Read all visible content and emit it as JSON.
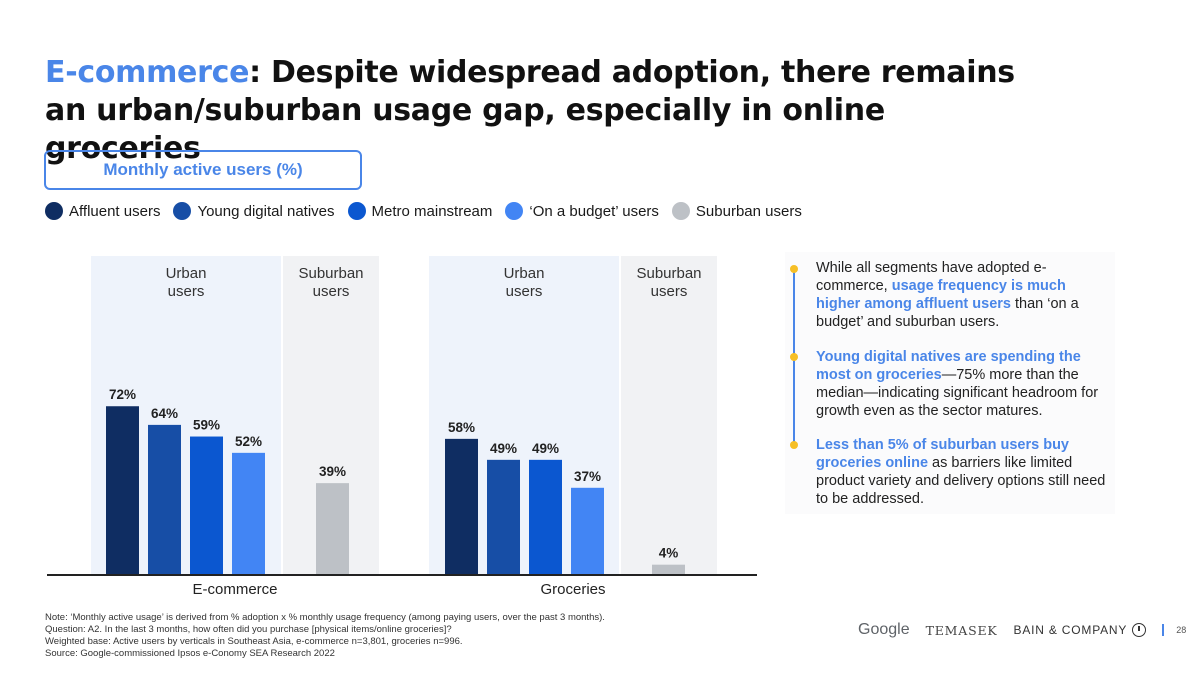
{
  "title": {
    "accent": "E-commerce",
    "rest": ": Despite widespread adoption, there remains an urban/suburban usage gap, especially in online groceries"
  },
  "metric_label": "Monthly active users (%)",
  "legend": [
    {
      "label": "Affluent users",
      "color": "#0f2d62"
    },
    {
      "label": "Young digital natives",
      "color": "#174ea6"
    },
    {
      "label": "Metro mainstream",
      "color": "#0b57d0"
    },
    {
      "label": "‘On a budget’ users",
      "color": "#4285f4"
    },
    {
      "label": "Suburban users",
      "color": "#bdc1c6"
    }
  ],
  "chart_data": {
    "type": "bar",
    "ylim": [
      0,
      100
    ],
    "groups": [
      {
        "name": "E-commerce",
        "panels": [
          {
            "label": [
              "Urban",
              "users"
            ],
            "series": [
              "Affluent users",
              "Young digital natives",
              "Metro mainstream",
              "‘On a budget’ users"
            ],
            "values": [
              72,
              64,
              59,
              52
            ],
            "value_labels": [
              "72%",
              "64%",
              "59%",
              "52%"
            ]
          },
          {
            "label": [
              "Suburban",
              "users"
            ],
            "series": [
              "Suburban users"
            ],
            "values": [
              39
            ],
            "value_labels": [
              "39%"
            ]
          }
        ]
      },
      {
        "name": "Groceries",
        "panels": [
          {
            "label": [
              "Urban",
              "users"
            ],
            "series": [
              "Affluent users",
              "Young digital natives",
              "Metro mainstream",
              "‘On a budget’ users"
            ],
            "values": [
              58,
              49,
              49,
              37
            ],
            "value_labels": [
              "58%",
              "49%",
              "49%",
              "37%"
            ]
          },
          {
            "label": [
              "Suburban",
              "users"
            ],
            "series": [
              "Suburban users"
            ],
            "values": [
              4
            ],
            "value_labels": [
              "4%"
            ]
          }
        ]
      }
    ],
    "colors": {
      "Affluent users": "#0f2d62",
      "Young digital natives": "#174ea6",
      "Metro mainstream": "#0b57d0",
      "‘On a budget’ users": "#4285f4",
      "Suburban users": "#bdc1c6"
    }
  },
  "notes": [
    {
      "parts": [
        {
          "t": "While all segments have adopted e-commerce, ",
          "hl": false
        },
        {
          "t": "usage frequency is much higher among affluent users",
          "hl": true
        },
        {
          "t": " than ‘on a budget’ and suburban users.",
          "hl": false
        }
      ]
    },
    {
      "parts": [
        {
          "t": "Young digital natives are spending the most on groceries",
          "hl": true
        },
        {
          "t": "—75% more than the median—indicating significant headroom for growth even as the sector matures.",
          "hl": false
        }
      ]
    },
    {
      "parts": [
        {
          "t": "Less than 5% of suburban users buy groceries online",
          "hl": true
        },
        {
          "t": " as barriers like limited product variety and delivery options still need to be addressed.",
          "hl": false
        }
      ]
    }
  ],
  "footnotes": {
    "note": "Note: ‘Monthly active usage’ is derived from % adoption x % monthly usage frequency (among paying users, over the past 3 months).",
    "question": "Question: A2. In the last 3 months, how often did you purchase [physical items/online groceries]?",
    "base": "Weighted base: Active users by verticals in Southeast Asia, e-commerce n=3,801, groceries n=996.",
    "source": "Source: Google-commissioned Ipsos e-Conomy SEA Research 2022"
  },
  "logos": {
    "google": "Google",
    "temasek": "TEMASEK",
    "bain": "BAIN & COMPANY"
  },
  "page_number": "28"
}
